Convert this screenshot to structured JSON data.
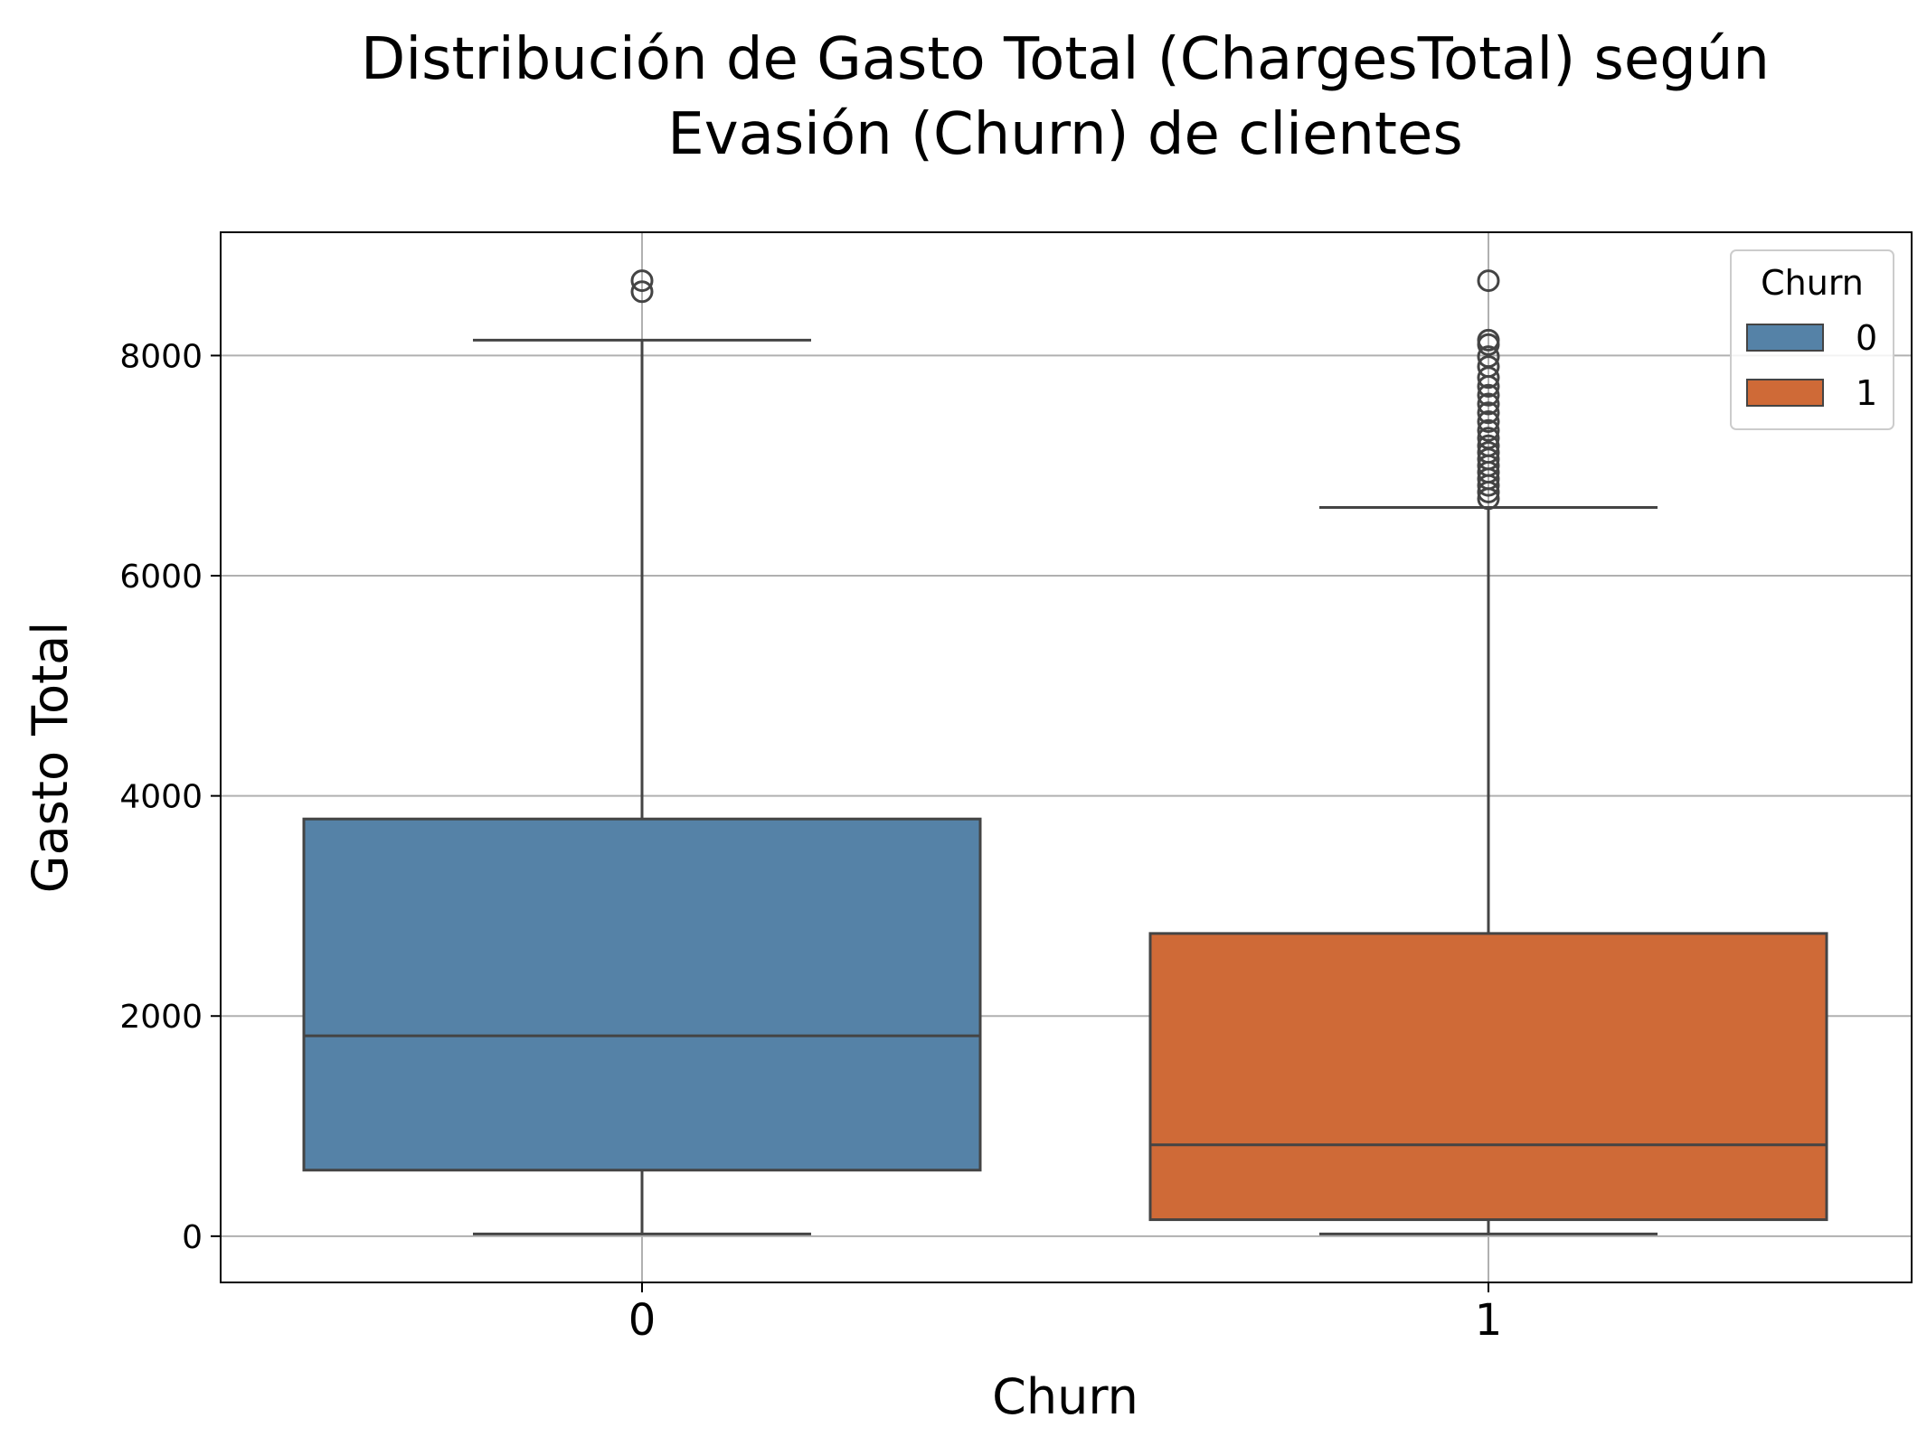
{
  "chart_data": {
    "type": "box",
    "title": "Distribución de Gasto Total (ChargesTotal) según\nEvasión (Churn) de clientes",
    "xlabel": "Churn",
    "ylabel": "Gasto Total",
    "categories": [
      "0",
      "1"
    ],
    "ylim": [
      -420,
      9120
    ],
    "yticks": [
      0,
      2000,
      4000,
      6000,
      8000
    ],
    "grid": true,
    "legend": {
      "title": "Churn",
      "position": "top-right",
      "entries": [
        {
          "label": "0",
          "color": "#5582a7"
        },
        {
          "label": "1",
          "color": "#cf6a37"
        }
      ]
    },
    "series": [
      {
        "name": "0",
        "color": "#5582a7",
        "q1": 600,
        "median": 1820,
        "q3": 3790,
        "whisker_low": 20,
        "whisker_high": 8140,
        "outliers": [
          8580,
          8680
        ]
      },
      {
        "name": "1",
        "color": "#cf6a37",
        "q1": 150,
        "median": 830,
        "q3": 2750,
        "whisker_low": 20,
        "whisker_high": 6620,
        "outliers": [
          6700,
          6760,
          6820,
          6880,
          6940,
          7000,
          7060,
          7120,
          7180,
          7250,
          7320,
          7400,
          7480,
          7560,
          7640,
          7720,
          7800,
          7900,
          7990,
          8100,
          8140,
          8680
        ]
      }
    ]
  }
}
